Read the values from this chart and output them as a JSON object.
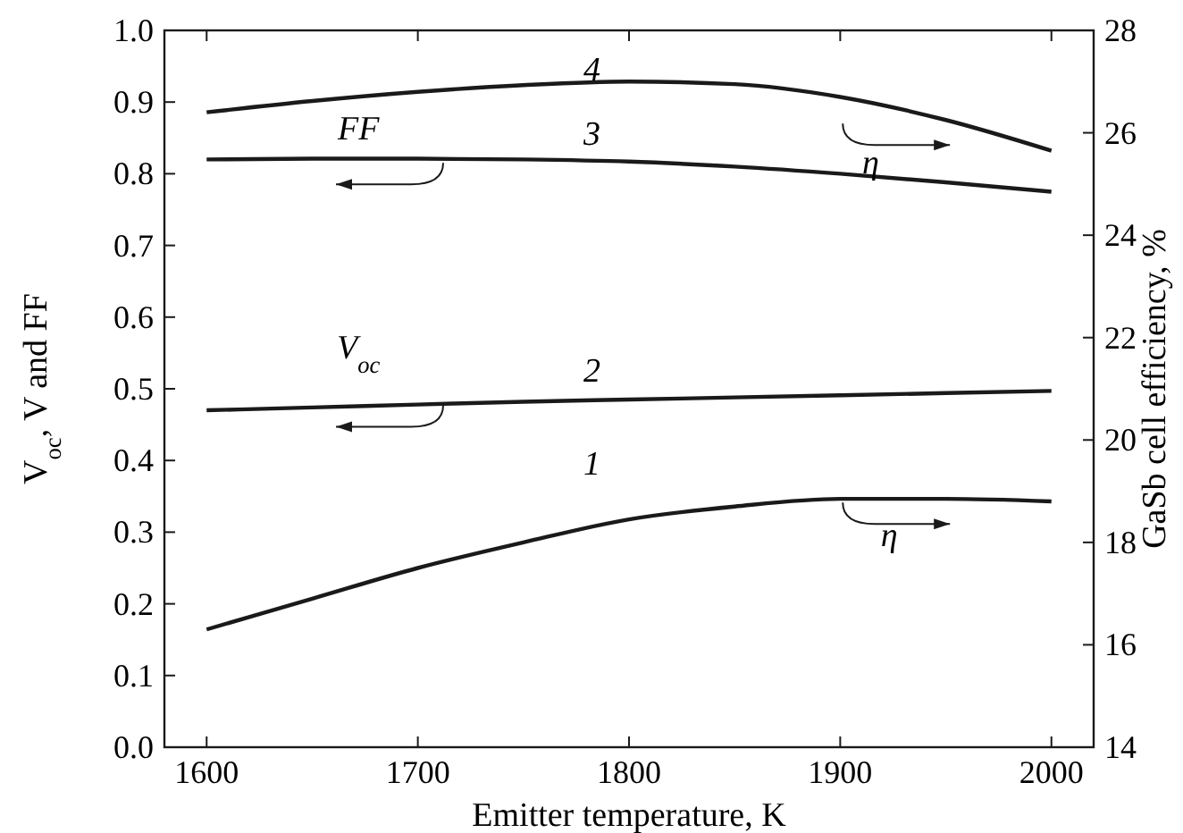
{
  "chart_data": {
    "type": "line",
    "xlabel": "Emitter temperature, K",
    "ylabel": "V$_{oc}$, V and FF",
    "y2label": "GaSb cell efficiency, %",
    "x": [
      1600,
      1650,
      1700,
      1750,
      1800,
      1850,
      1900,
      1950,
      2000
    ],
    "series": [
      {
        "color": "#1a1a1a",
        "axis": "y2",
        "values": [
          16.3,
          16.9,
          17.5,
          18.0,
          18.45,
          18.7,
          18.85,
          18.85,
          18.8
        ]
      },
      {
        "color": "#1a1a1a",
        "axis": "y",
        "values": [
          0.47,
          0.474,
          0.478,
          0.482,
          0.485,
          0.488,
          0.491,
          0.494,
          0.497
        ]
      },
      {
        "color": "#1a1a1a",
        "axis": "y",
        "values": [
          0.82,
          0.821,
          0.821,
          0.82,
          0.817,
          0.81,
          0.8,
          0.788,
          0.775
        ]
      },
      {
        "color": "#1a1a1a",
        "axis": "y2",
        "values": [
          26.4,
          26.62,
          26.8,
          26.93,
          27.0,
          26.95,
          26.7,
          26.25,
          25.65
        ]
      }
    ],
    "xlim": [
      1580,
      2020
    ],
    "xticks": [
      1600,
      1700,
      1800,
      1900,
      2000
    ],
    "ylim": [
      0,
      1
    ],
    "yticks": [
      {
        "value": 0,
        "label": "0.0"
      },
      0.1,
      0.2,
      0.3,
      0.4,
      0.5,
      0.6,
      0.7,
      0.8,
      0.9,
      {
        "value": 1,
        "label": "1.0"
      }
    ],
    "y2lim": [
      14,
      28
    ],
    "y2ticks": [
      14,
      16,
      18,
      20,
      22,
      24,
      26,
      28
    ],
    "annotations": [
      "1",
      "2",
      "3",
      "4",
      {
        "text": "FF",
        "x": 1710,
        "y": 0.82
      },
      {
        "text": "V$_{oc}$",
        "x": 1710,
        "y": 0.478
      },
      "η",
      "η"
    ],
    "grid": false,
    "marker": "none",
    "line_style": "solid"
  }
}
